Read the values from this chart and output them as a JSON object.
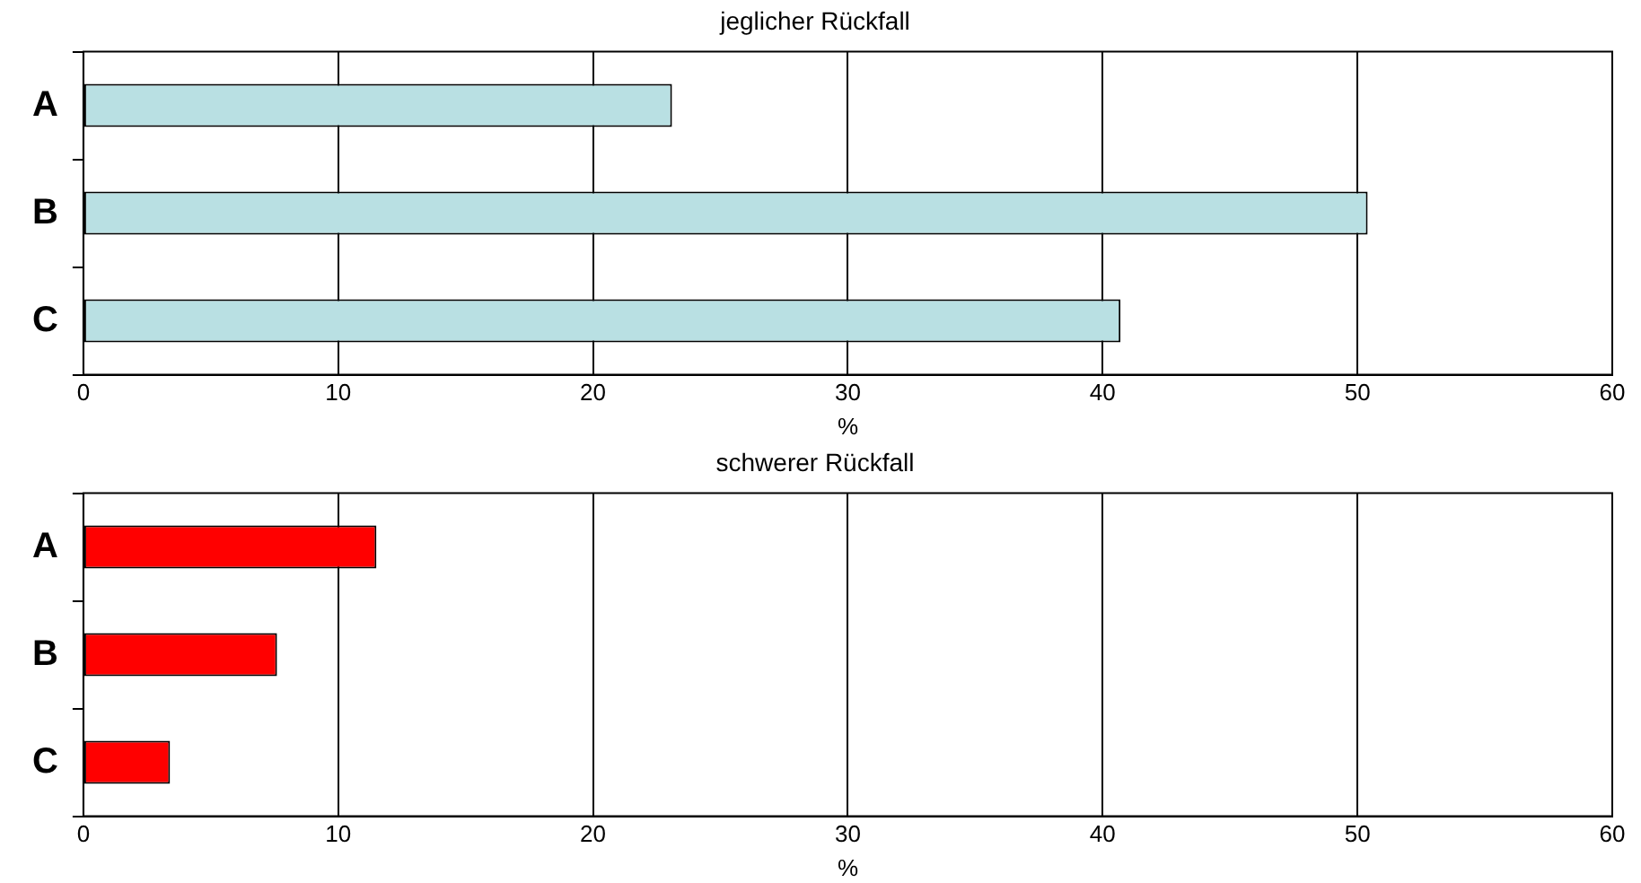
{
  "chart_data": [
    {
      "type": "bar",
      "orientation": "horizontal",
      "title": "jeglicher Rückfall",
      "xlabel": "%",
      "categories": [
        "A",
        "B",
        "C"
      ],
      "values": [
        23.1,
        50.4,
        40.7
      ],
      "color": "#b9e0e3",
      "xlim": [
        0,
        60
      ],
      "xticks": [
        0,
        10,
        20,
        30,
        40,
        50,
        60
      ],
      "grid": "x",
      "legend": false
    },
    {
      "type": "bar",
      "orientation": "horizontal",
      "title": "schwerer Rückfall",
      "xlabel": "%",
      "categories": [
        "A",
        "B",
        "C"
      ],
      "values": [
        11.5,
        7.6,
        3.4
      ],
      "color": "#ff0000",
      "xlim": [
        0,
        60
      ],
      "xticks": [
        0,
        10,
        20,
        30,
        40,
        50,
        60
      ],
      "grid": "x",
      "legend": false
    }
  ]
}
